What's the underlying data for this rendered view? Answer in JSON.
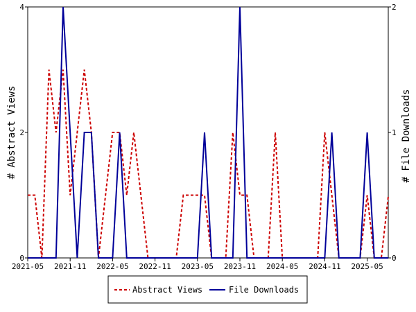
{
  "chart_data": {
    "type": "line",
    "title": "",
    "xlabel": "",
    "ylabel": "# Abstract Views",
    "y2label": "# File Downloads",
    "x_ticks": [
      "2021-05",
      "2021-11",
      "2022-05",
      "2022-11",
      "2023-05",
      "2023-11",
      "2024-05",
      "2024-11",
      "2025-05"
    ],
    "ylim": [
      0,
      4
    ],
    "y_ticks": [
      "0",
      "2",
      "4"
    ],
    "y2lim": [
      0,
      2
    ],
    "y2_ticks": [
      "0",
      "1",
      "2"
    ],
    "grid": false,
    "legend": "bottom",
    "x": [
      "2021-05",
      "2021-06",
      "2021-07",
      "2021-08",
      "2021-09",
      "2021-10",
      "2021-11",
      "2021-12",
      "2022-01",
      "2022-02",
      "2022-03",
      "2022-04",
      "2022-05",
      "2022-06",
      "2022-07",
      "2022-08",
      "2022-09",
      "2022-10",
      "2022-11",
      "2022-12",
      "2023-01",
      "2023-02",
      "2023-03",
      "2023-04",
      "2023-05",
      "2023-06",
      "2023-07",
      "2023-08",
      "2023-09",
      "2023-10",
      "2023-11",
      "2023-12",
      "2024-01",
      "2024-02",
      "2024-03",
      "2024-04",
      "2024-05",
      "2024-06",
      "2024-07",
      "2024-08",
      "2024-09",
      "2024-10",
      "2024-11",
      "2024-12",
      "2025-01",
      "2025-02",
      "2025-03",
      "2025-04",
      "2025-05",
      "2025-06",
      "2025-07",
      "2025-08"
    ],
    "series": [
      {
        "name": "Abstract Views",
        "axis": "left",
        "color": "#cc0000",
        "dash": true,
        "values": [
          1,
          1,
          0,
          3,
          2,
          3,
          1,
          2,
          3,
          2,
          0,
          1,
          2,
          2,
          1,
          2,
          1,
          0,
          0,
          0,
          0,
          0,
          1,
          1,
          1,
          1,
          0,
          0,
          0,
          2,
          1,
          1,
          0,
          0,
          0,
          2,
          0,
          0,
          0,
          0,
          0,
          0,
          2,
          1,
          0,
          0,
          0,
          0,
          1,
          0,
          0,
          1
        ]
      },
      {
        "name": "File Downloads",
        "axis": "right",
        "color": "#000099",
        "dash": false,
        "values": [
          0,
          0,
          0,
          0,
          0,
          2,
          1,
          0,
          1,
          1,
          0,
          0,
          0,
          1,
          0,
          0,
          0,
          0,
          0,
          0,
          0,
          0,
          0,
          0,
          0,
          1,
          0,
          0,
          0,
          0,
          2,
          0,
          0,
          0,
          0,
          0,
          0,
          0,
          0,
          0,
          0,
          0,
          0,
          1,
          0,
          0,
          0,
          0,
          1,
          0,
          0,
          0
        ]
      }
    ]
  }
}
